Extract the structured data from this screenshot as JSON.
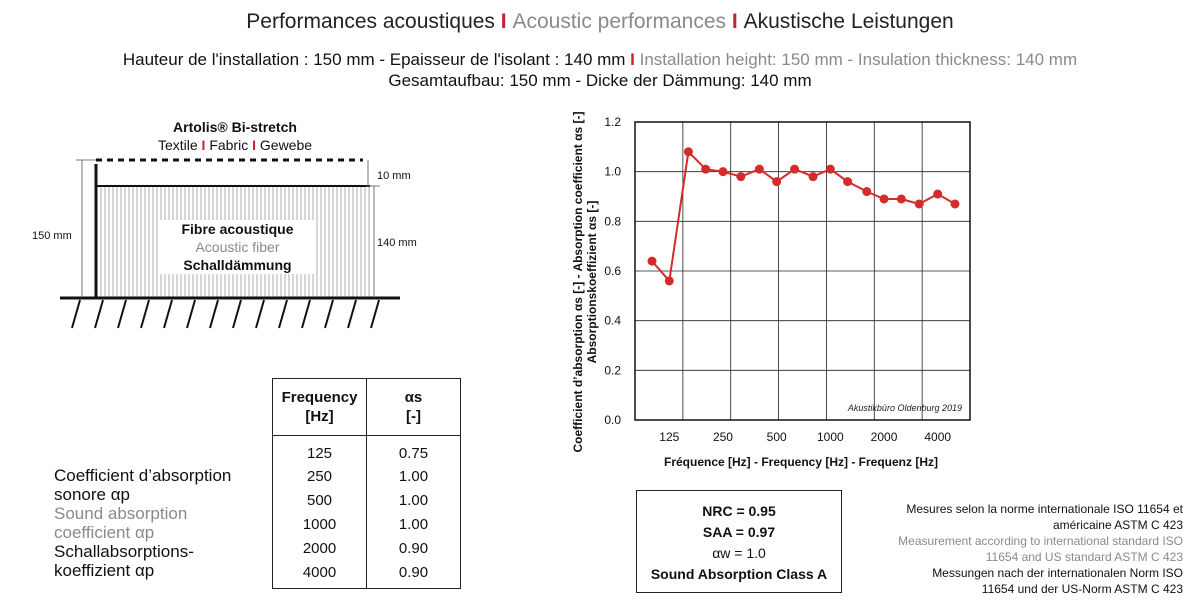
{
  "header": {
    "title_fr": "Performances acoustiques",
    "title_sep": " I ",
    "title_en": "Acoustic performances",
    "title_de": "Akustische Leistungen",
    "line1_fr": "Hauteur de l'installation : 150 mm - Epaisseur de l'isolant : 140 mm",
    "line1_sep": " I ",
    "line1_en": "Installation height: 150 mm - Insulation thickness: 140 mm",
    "line2_de": "Gesamtaufbau: 150 mm - Dicke der Dämmung: 140 mm"
  },
  "diagram": {
    "product": "Artolis® Bi-stretch",
    "fabric_fr": "Textile",
    "fabric_en": "Fabric",
    "fabric_de": "Gewebe",
    "sep": " I ",
    "dim_total": "150 mm",
    "dim_gap": "10 mm",
    "dim_insulation": "140 mm",
    "fibre_fr": "Fibre acoustique",
    "fibre_en": "Acoustic fiber",
    "fibre_de": "Schalldämmung"
  },
  "table": {
    "col1_line1": "Frequency",
    "col1_line2": "[Hz]",
    "col2_line1": "αs",
    "col2_line2": "[-]",
    "rows": [
      {
        "f": "125",
        "a": "0.75"
      },
      {
        "f": "250",
        "a": "1.00"
      },
      {
        "f": "500",
        "a": "1.00"
      },
      {
        "f": "1000",
        "a": "1.00"
      },
      {
        "f": "2000",
        "a": "0.90"
      },
      {
        "f": "4000",
        "a": "0.90"
      }
    ]
  },
  "coefficient": {
    "fr1": "Coefficient d’absorption",
    "fr2": "sonore αp",
    "en1": "Sound absorption",
    "en2": "coefficient αp",
    "de1": "Schallabsorptions-",
    "de2": "koeffizient αp"
  },
  "ratings": {
    "nrc": "NRC = 0.95",
    "saa": "SAA = 0.97",
    "aw": "αw = 1.0",
    "class": "Sound Absorption Class A"
  },
  "measurement": {
    "fr1": "Mesures selon la norme internationale ISO 11654 et",
    "fr2": "américaine ASTM C 423",
    "en1": "Measurement according to international standard ISO",
    "en2": "11654 and US standard ASTM C 423",
    "de1": "Messungen nach der internationalen Norm ISO",
    "de2": "11654 und der US-Norm ASTM C 423"
  },
  "colors": {
    "accent": "#c0272d",
    "series": "#d42b2b",
    "muted": "#8a8a8a"
  },
  "chart_data": {
    "type": "line",
    "x": [
      100,
      125,
      160,
      200,
      250,
      315,
      400,
      500,
      630,
      800,
      1000,
      1250,
      1600,
      2000,
      2500,
      3150,
      4000,
      5000
    ],
    "x_scale": "log",
    "xticks": [
      "125",
      "250",
      "500",
      "1000",
      "2000",
      "4000"
    ],
    "xtick_values": [
      125,
      250,
      500,
      1000,
      2000,
      4000
    ],
    "series": [
      {
        "values": [
          0.64,
          0.56,
          1.08,
          1.01,
          1.0,
          0.98,
          1.01,
          0.96,
          1.01,
          0.98,
          1.01,
          0.96,
          0.92,
          0.89,
          0.89,
          0.87,
          0.91,
          0.87
        ]
      }
    ],
    "yticks": [
      "0.0",
      "0.2",
      "0.4",
      "0.6",
      "0.8",
      "1.0",
      "1.2"
    ],
    "ylim": [
      0,
      1.2
    ],
    "xlabel": "Fréquence [Hz] - Frequency [Hz] - Frequenz [Hz]",
    "ylabel_line1": "Coefficient d’absorption αs [-] - Absorption coefficient αs [-]",
    "ylabel_line2": "Absorptionskoeffizient αs [-]",
    "source": "Akustikbüro Oldenburg 2019",
    "grid": true
  }
}
